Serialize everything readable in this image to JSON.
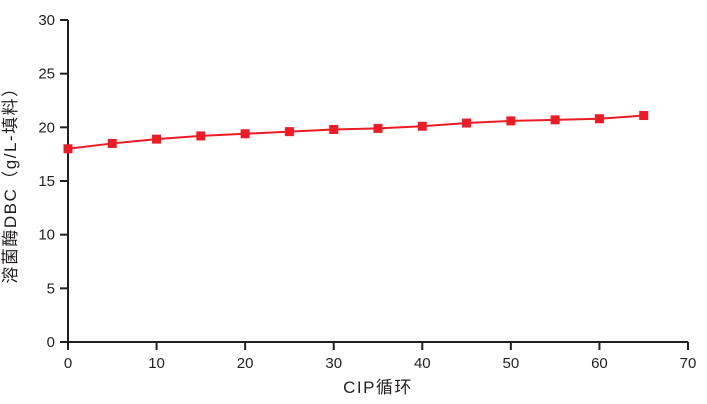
{
  "chart_data": {
    "type": "line",
    "title": "",
    "xlabel": "CIP循环",
    "ylabel": "溶菌酶DBC（g/L-填料）",
    "x": [
      0,
      5,
      10,
      15,
      20,
      25,
      30,
      35,
      40,
      45,
      50,
      55,
      60,
      65
    ],
    "series": [
      {
        "name": "溶菌酶DBC",
        "values": [
          18.0,
          18.5,
          18.9,
          19.2,
          19.4,
          19.6,
          19.8,
          19.9,
          20.1,
          20.4,
          20.6,
          20.7,
          20.8,
          21.1
        ],
        "color": "#ED1C24",
        "marker": "square"
      }
    ],
    "xlim": [
      0,
      70
    ],
    "ylim": [
      0,
      30
    ],
    "x_ticks": [
      0,
      10,
      20,
      30,
      40,
      50,
      60,
      70
    ],
    "y_ticks": [
      0,
      5,
      10,
      15,
      20,
      25,
      30
    ],
    "grid": false,
    "legend": "none"
  },
  "colors": {
    "series_red": "#ED1C24",
    "axis": "#231F20",
    "text": "#231F20",
    "background": "#FFFFFF"
  }
}
